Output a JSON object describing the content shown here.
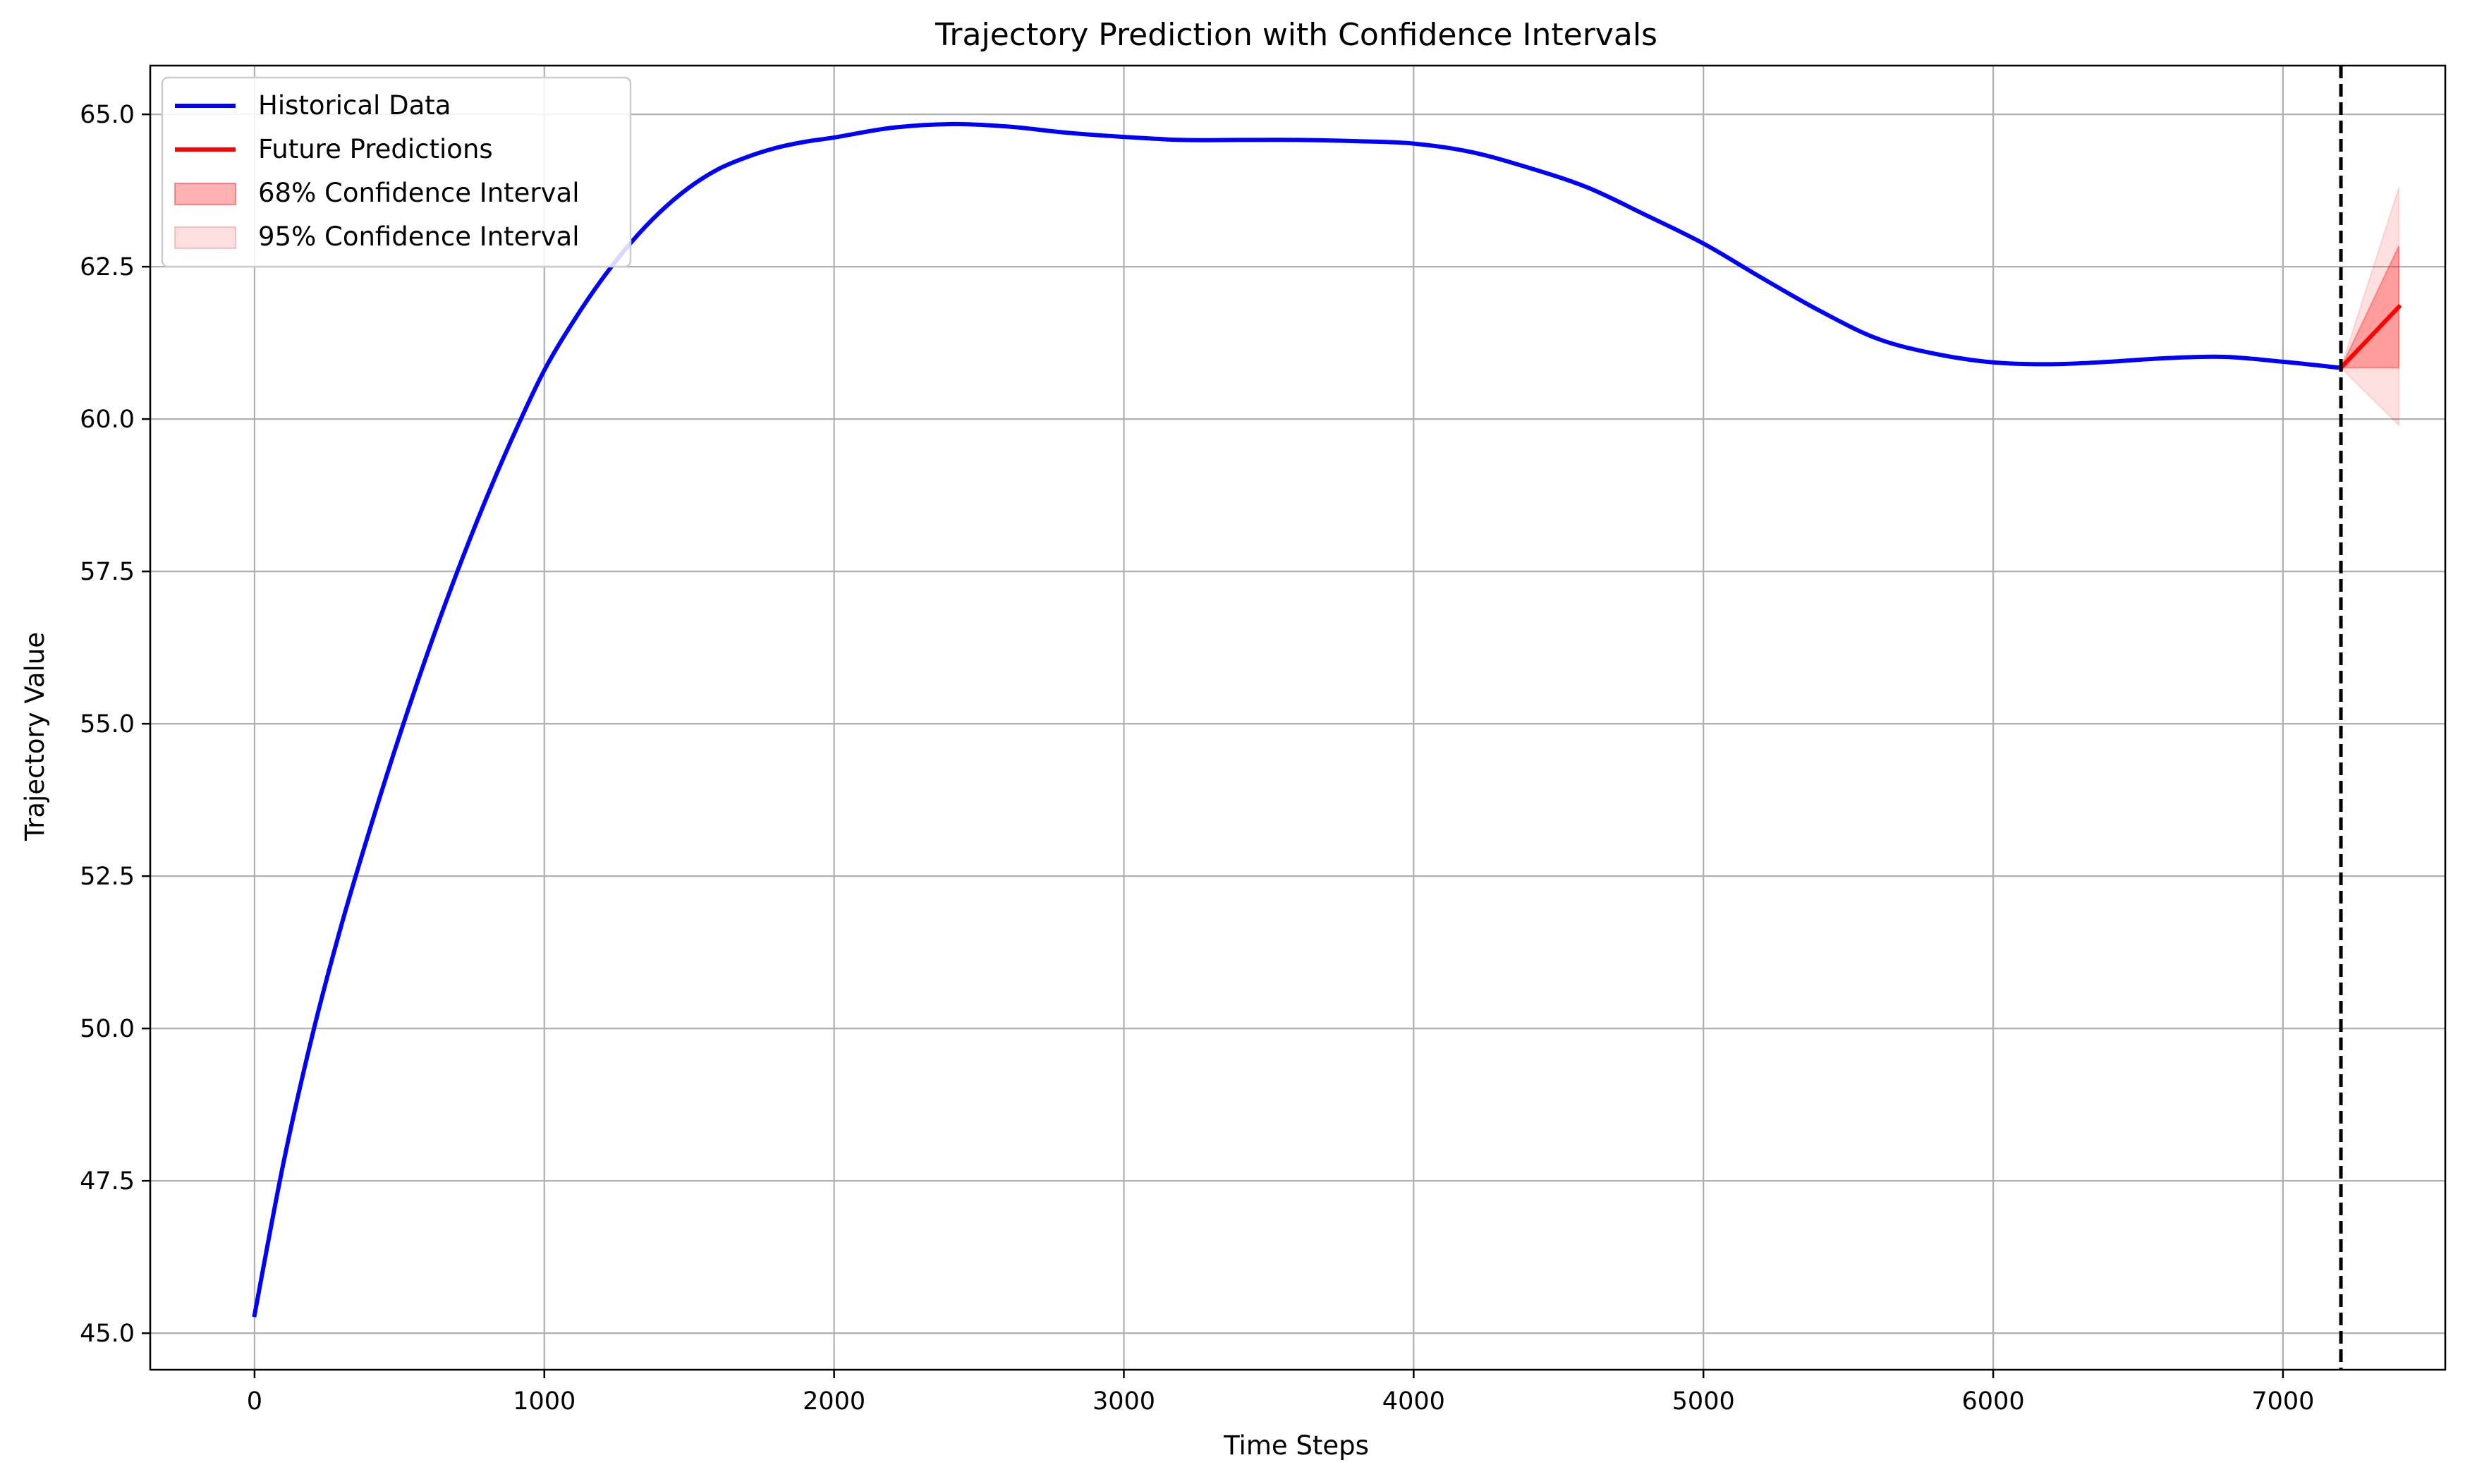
{
  "chart_data": {
    "type": "line",
    "title": "Trajectory Prediction with Confidence Intervals",
    "xlabel": "Time Steps",
    "ylabel": "Trajectory Value",
    "xlim": [
      -360,
      7560
    ],
    "ylim": [
      44.4,
      65.8
    ],
    "xticks": [
      0,
      1000,
      2000,
      3000,
      4000,
      5000,
      6000,
      7000
    ],
    "xtick_labels": [
      "0",
      "1000",
      "2000",
      "3000",
      "4000",
      "5000",
      "6000",
      "7000"
    ],
    "yticks": [
      45.0,
      47.5,
      50.0,
      52.5,
      55.0,
      57.5,
      60.0,
      62.5,
      65.0
    ],
    "ytick_labels": [
      "45.0",
      "47.5",
      "50.0",
      "52.5",
      "55.0",
      "57.5",
      "60.0",
      "62.5",
      "65.0"
    ],
    "grid": true,
    "legend_position": "top-left",
    "prediction_start": 7200,
    "colors": {
      "historical": "#0000ff",
      "prediction": "#ff0000",
      "ci68": "#ff0000",
      "ci95": "#ff0000",
      "divider": "#000000",
      "grid": "#b0b0b0"
    },
    "series": [
      {
        "name": "Historical Data",
        "x": [
          0,
          100,
          200,
          300,
          400,
          500,
          600,
          700,
          800,
          900,
          1000,
          1100,
          1200,
          1300,
          1400,
          1500,
          1600,
          1700,
          1800,
          1900,
          2000,
          2200,
          2400,
          2600,
          2800,
          3000,
          3200,
          3400,
          3600,
          3800,
          4000,
          4200,
          4400,
          4600,
          4800,
          5000,
          5200,
          5400,
          5600,
          5800,
          6000,
          6200,
          6400,
          6600,
          6800,
          7000,
          7200
        ],
        "y": [
          45.3,
          47.8,
          49.9,
          51.7,
          53.3,
          54.8,
          56.2,
          57.5,
          58.7,
          59.8,
          60.8,
          61.6,
          62.3,
          62.9,
          63.4,
          63.8,
          64.1,
          64.3,
          64.45,
          64.55,
          64.62,
          64.78,
          64.84,
          64.8,
          64.7,
          64.63,
          64.58,
          64.58,
          64.58,
          64.56,
          64.52,
          64.38,
          64.12,
          63.8,
          63.35,
          62.88,
          62.32,
          61.78,
          61.32,
          61.07,
          60.93,
          60.9,
          60.94,
          61.0,
          61.02,
          60.94,
          60.84
        ]
      },
      {
        "name": "Future Predictions",
        "x": [
          7200,
          7400
        ],
        "y": [
          60.84,
          61.84
        ]
      }
    ],
    "bands": [
      {
        "name": "68% Confidence Interval",
        "x": [
          7200,
          7400
        ],
        "lower": [
          60.84,
          60.84
        ],
        "upper": [
          60.84,
          62.84
        ],
        "opacity": 0.3
      },
      {
        "name": "95% Confidence Interval",
        "x": [
          7200,
          7400
        ],
        "lower": [
          60.84,
          59.9
        ],
        "upper": [
          60.84,
          63.8
        ],
        "opacity": 0.12
      }
    ]
  }
}
